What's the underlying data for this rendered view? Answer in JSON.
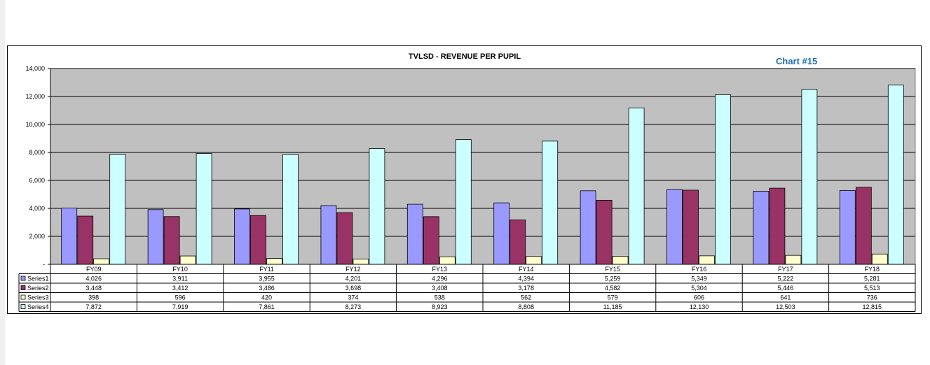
{
  "chart_label": "Chart #15",
  "chart_data": {
    "type": "bar",
    "title": "TVLSD - REVENUE PER PUPIL",
    "xlabel": "",
    "ylabel": "",
    "ylim": [
      0,
      14000
    ],
    "yticks": [
      0,
      2000,
      4000,
      6000,
      8000,
      10000,
      12000,
      14000
    ],
    "ytick_labels": [
      "-",
      "2,000",
      "4,000",
      "6,000",
      "8,000",
      "10,000",
      "12,000",
      "14,000"
    ],
    "grid": true,
    "legend": "data-table",
    "categories": [
      "FY09",
      "FY10",
      "FY11",
      "FY12",
      "FY13",
      "FY14",
      "FY15",
      "FY16",
      "FY17",
      "FY18"
    ],
    "series": [
      {
        "name": "Series1",
        "color": "#9999ff",
        "values": [
          4026,
          3911,
          3955,
          4201,
          4296,
          4394,
          5259,
          5349,
          5222,
          5281
        ],
        "labels": [
          "4,026",
          "3,911",
          "3,955",
          "4,201",
          "4,296",
          "4,394",
          "5,259",
          "5,349",
          "5,222",
          "5,281"
        ]
      },
      {
        "name": "Series2",
        "color": "#993366",
        "values": [
          3448,
          3412,
          3486,
          3698,
          3408,
          3178,
          4582,
          5304,
          5446,
          5513
        ],
        "labels": [
          "3,448",
          "3,412",
          "3,486",
          "3,698",
          "3,408",
          "3,178",
          "4,582",
          "5,304",
          "5,446",
          "5,513"
        ]
      },
      {
        "name": "Series3",
        "color": "#ffffcc",
        "values": [
          398,
          596,
          420,
          374,
          538,
          562,
          579,
          606,
          641,
          736
        ],
        "labels": [
          "398",
          "596",
          "420",
          "374",
          "538",
          "562",
          "579",
          "606",
          "641",
          "736"
        ]
      },
      {
        "name": "Series4",
        "color": "#ccffff",
        "values": [
          7872,
          7919,
          7861,
          8273,
          8923,
          8808,
          11185,
          12130,
          12503,
          12815
        ],
        "labels": [
          "7,872",
          "7,919",
          "7,861",
          "8,273",
          "8,923",
          "8,808",
          "11,185",
          "12,130",
          "12,503",
          "12,815"
        ]
      }
    ]
  }
}
